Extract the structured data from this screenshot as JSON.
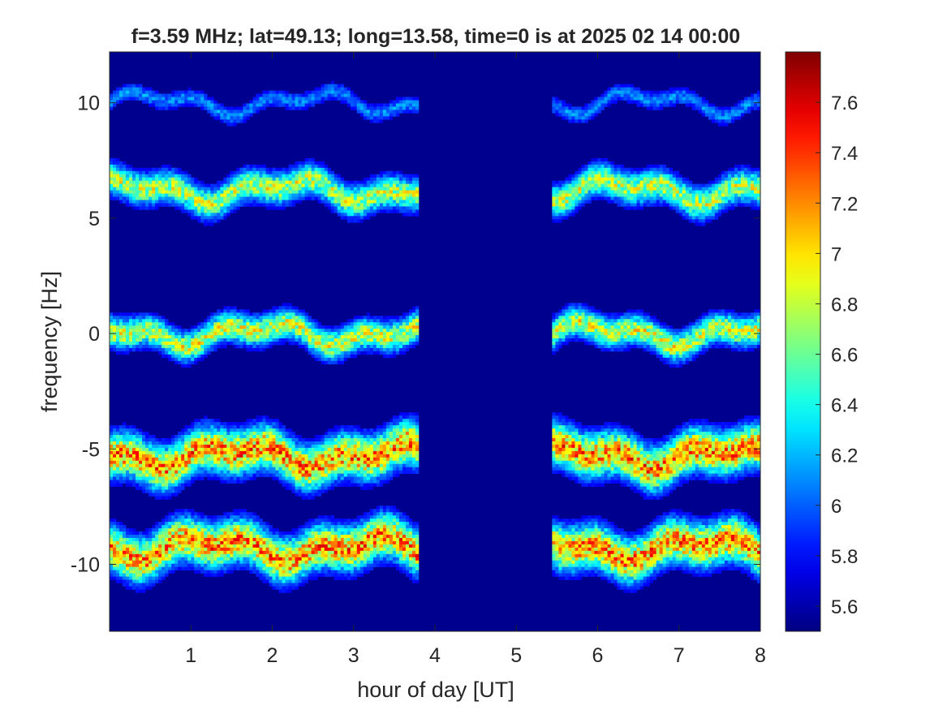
{
  "chart_data": {
    "type": "heatmap",
    "title": "f=3.59 MHz;  lat=49.13; long=13.58, time=0 is at 2025 02 14 00:00",
    "xlabel": "hour of day [UT]",
    "ylabel": "frequency [Hz]",
    "xlim": [
      0,
      8
    ],
    "ylim": [
      -12.9,
      12.2
    ],
    "x_ticks": [
      1,
      2,
      3,
      4,
      5,
      6,
      7,
      8
    ],
    "x_tick_labels": [
      "1",
      "2",
      "3",
      "4",
      "5",
      "6",
      "7",
      "8"
    ],
    "y_ticks": [
      10,
      5,
      0,
      -5,
      -10
    ],
    "y_tick_labels": [
      "10",
      "5",
      "0",
      "-5",
      "-10"
    ],
    "colorbar": {
      "colormap": "jet",
      "range": [
        5.5,
        7.8
      ],
      "ticks": [
        5.6,
        5.8,
        6,
        6.2,
        6.4,
        6.6,
        6.8,
        7,
        7.2,
        7.4,
        7.6
      ],
      "tick_labels": [
        "5.6",
        "5.8",
        "6",
        "6.2",
        "6.4",
        "6.6",
        "6.8",
        "7",
        "7.2",
        "7.4",
        "7.6"
      ]
    },
    "background_value": 5.55,
    "gap_hours": [
      3.8,
      5.45
    ],
    "traces": [
      {
        "center": 10.0,
        "strength": 0.32,
        "spread": 0.45
      },
      {
        "center": 6.2,
        "strength": 0.72,
        "spread": 0.8
      },
      {
        "center": 0.0,
        "strength": 0.75,
        "spread": 0.75
      },
      {
        "center": -5.3,
        "strength": 0.95,
        "spread": 1.1
      },
      {
        "center": -9.3,
        "strength": 0.95,
        "spread": 1.1
      }
    ]
  }
}
